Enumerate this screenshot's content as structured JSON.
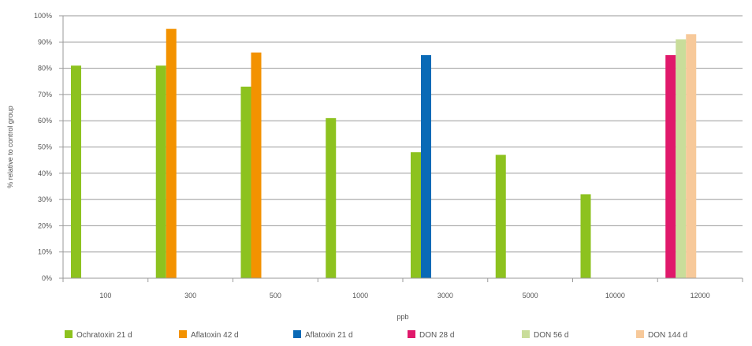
{
  "chart_data": {
    "type": "bar",
    "title": "",
    "xlabel": "ppb",
    "ylabel": "% relative to control group",
    "ylim": [
      0,
      100
    ],
    "y_ticks": [
      "0%",
      "10%",
      "20%",
      "30%",
      "40%",
      "50%",
      "60%",
      "70%",
      "80%",
      "90%",
      "100%"
    ],
    "categories": [
      "100",
      "300",
      "500",
      "1000",
      "3000",
      "5000",
      "10000",
      "12000"
    ],
    "grid": true,
    "legend_position": "bottom",
    "series": [
      {
        "name": "Ochratoxin 21 d",
        "color": "#8dc21f",
        "values": [
          81,
          81,
          73,
          61,
          48,
          47,
          32,
          null
        ]
      },
      {
        "name": "Aflatoxin 42 d",
        "color": "#f39200",
        "values": [
          null,
          95,
          86,
          null,
          null,
          null,
          null,
          null
        ]
      },
      {
        "name": "Aflatoxin 21 d",
        "color": "#0a6ab6",
        "values": [
          null,
          null,
          null,
          null,
          85,
          null,
          null,
          null
        ]
      },
      {
        "name": "DON 28 d",
        "color": "#e0196b",
        "values": [
          null,
          null,
          null,
          null,
          null,
          null,
          null,
          85
        ]
      },
      {
        "name": "DON 56 d",
        "color": "#c9dd9a",
        "values": [
          null,
          null,
          null,
          null,
          null,
          null,
          null,
          91
        ]
      },
      {
        "name": "DON 144 d",
        "color": "#f7c99a",
        "values": [
          null,
          null,
          null,
          null,
          null,
          null,
          null,
          93
        ]
      }
    ]
  }
}
